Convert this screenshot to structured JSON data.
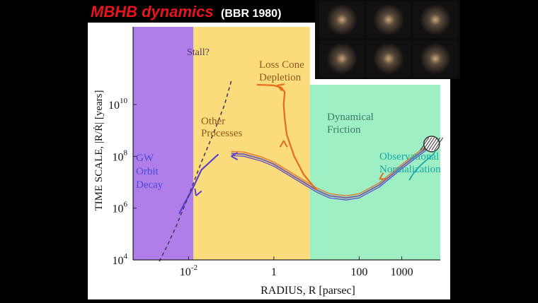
{
  "slide_title": {
    "main": "MBHB dynamics",
    "ref": "(BBR 1980)"
  },
  "gallery": {
    "thumbnails": 6,
    "icon": "galaxy-merger-thumbnails"
  },
  "colors": {
    "gw_band": "#b07ee8",
    "other_band": "#fbdc7c",
    "friction_band": "#9ef0c4",
    "title_red": "#e8141c",
    "evolution_curve": "#e46a1e",
    "gw_curve": "#5a3fd0",
    "friction_curve": "#7a6aa0",
    "region_text_blue": "#4a4ad8",
    "region_text_brown": "#8a5a1e",
    "region_text_green": "#3a7a6a",
    "normalization_text": "#1aa8a8"
  },
  "chart_data": {
    "type": "line",
    "xlabel": "RADIUS, R  [parsec]",
    "ylabel": "TIME  SCALE,  |R/Ṙ|  [years]",
    "xscale": "log",
    "yscale": "log",
    "xlim": [
      0.0005,
      8000
    ],
    "ylim": [
      10000,
      10000000000000
    ],
    "x_ticks": [
      {
        "value": 0.01,
        "base": "10",
        "exp": "-2"
      },
      {
        "value": 1,
        "base": "1",
        "exp": ""
      },
      {
        "value": 100,
        "base": "100",
        "exp": ""
      },
      {
        "value": 1000,
        "base": "1000",
        "exp": ""
      }
    ],
    "y_ticks": [
      {
        "value": 10000,
        "base": "10",
        "exp": "4"
      },
      {
        "value": 1000000,
        "base": "10",
        "exp": "6"
      },
      {
        "value": 100000000,
        "base": "10",
        "exp": "8"
      },
      {
        "value": 10000000000,
        "base": "10",
        "exp": "10"
      }
    ],
    "regions": [
      {
        "name": "gw",
        "x_from": 0.0005,
        "x_to": 0.013
      },
      {
        "name": "other",
        "x_from": 0.013,
        "x_to": 7
      },
      {
        "name": "friction",
        "x_from": 7,
        "x_to": 8000
      }
    ],
    "series": [
      {
        "id": "friction_curve",
        "style": "solid",
        "x": [
          5000,
          1000,
          300,
          100,
          50,
          20,
          10,
          5,
          2,
          1,
          0.5,
          0.2,
          0.1
        ],
        "y": [
          300000000,
          40000000,
          8000000,
          3000000,
          2500000,
          3000000,
          5000000,
          10000000,
          25000000,
          50000000,
          80000000,
          120000000,
          130000000
        ]
      },
      {
        "id": "loss_cone_branch",
        "style": "solid",
        "x": [
          10,
          5,
          3,
          2,
          1.8,
          1.7,
          1.8,
          1.5,
          1.0,
          0.6,
          0.4
        ],
        "y": [
          5000000,
          20000000,
          100000000,
          700000000,
          3000000000,
          10000000000,
          30000000000,
          45000000000,
          55000000000,
          57000000000,
          58000000000
        ]
      },
      {
        "id": "gw_decay",
        "style": "solid",
        "x": [
          0.05,
          0.02,
          0.012,
          0.008,
          0.006
        ],
        "y": [
          120000000,
          30000000,
          5000000,
          1500000,
          600000
        ]
      },
      {
        "id": "stall_to_gw",
        "style": "dashed",
        "x": [
          0.1,
          0.07,
          0.04,
          0.02,
          0.01,
          0.005,
          0.003,
          0.002
        ],
        "y": [
          80000000000,
          10000000000,
          900000000,
          60000000,
          3000000,
          180000,
          30000,
          8000
        ]
      }
    ],
    "annotations": {
      "gw": [
        "GW",
        "Orbit",
        "Decay"
      ],
      "other": [
        "Other",
        "Processes"
      ],
      "stall": "Stall?",
      "loss_cone": [
        "Loss Cone",
        "Depletion"
      ],
      "friction": [
        "Dynamical",
        "Friction"
      ],
      "normalization": [
        "Observational",
        "Normalization"
      ]
    }
  }
}
